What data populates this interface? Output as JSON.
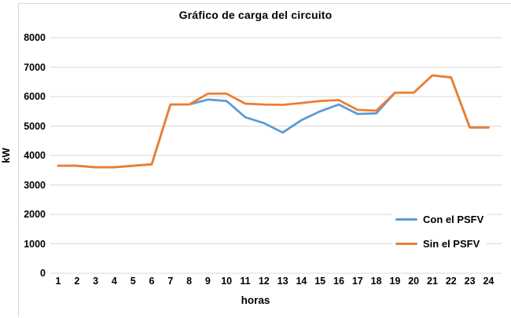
{
  "chart_data": {
    "type": "line",
    "title": "Gráfico de carga del circuito",
    "xlabel": "horas",
    "ylabel": "kW",
    "x": [
      1,
      2,
      3,
      4,
      5,
      6,
      7,
      8,
      9,
      10,
      11,
      12,
      13,
      14,
      15,
      16,
      17,
      18,
      19,
      20,
      21,
      22,
      23,
      24
    ],
    "series": [
      {
        "name": "Con el PSFV",
        "color": "#5B9BD5",
        "values": [
          3650,
          3650,
          3600,
          3600,
          3650,
          3700,
          5730,
          5730,
          5900,
          5850,
          5300,
          5100,
          4780,
          5200,
          5500,
          5730,
          5410,
          5430,
          6130,
          6130,
          6720,
          6650,
          4950,
          4950
        ]
      },
      {
        "name": "Sin el PSFV",
        "color": "#ED7D31",
        "values": [
          3650,
          3650,
          3600,
          3600,
          3650,
          3700,
          5730,
          5730,
          6100,
          6100,
          5760,
          5730,
          5720,
          5780,
          5850,
          5880,
          5550,
          5520,
          6130,
          6130,
          6720,
          6650,
          4950,
          4950
        ]
      }
    ],
    "ylim": [
      0,
      8000
    ],
    "y_ticks": [
      0,
      1000,
      2000,
      3000,
      4000,
      5000,
      6000,
      7000,
      8000
    ],
    "grid": true,
    "legend_position": "inside-lower-right",
    "gridline_color": "#D9D9D9",
    "border_color": "#D9D9D9",
    "text_color": "#000000"
  }
}
